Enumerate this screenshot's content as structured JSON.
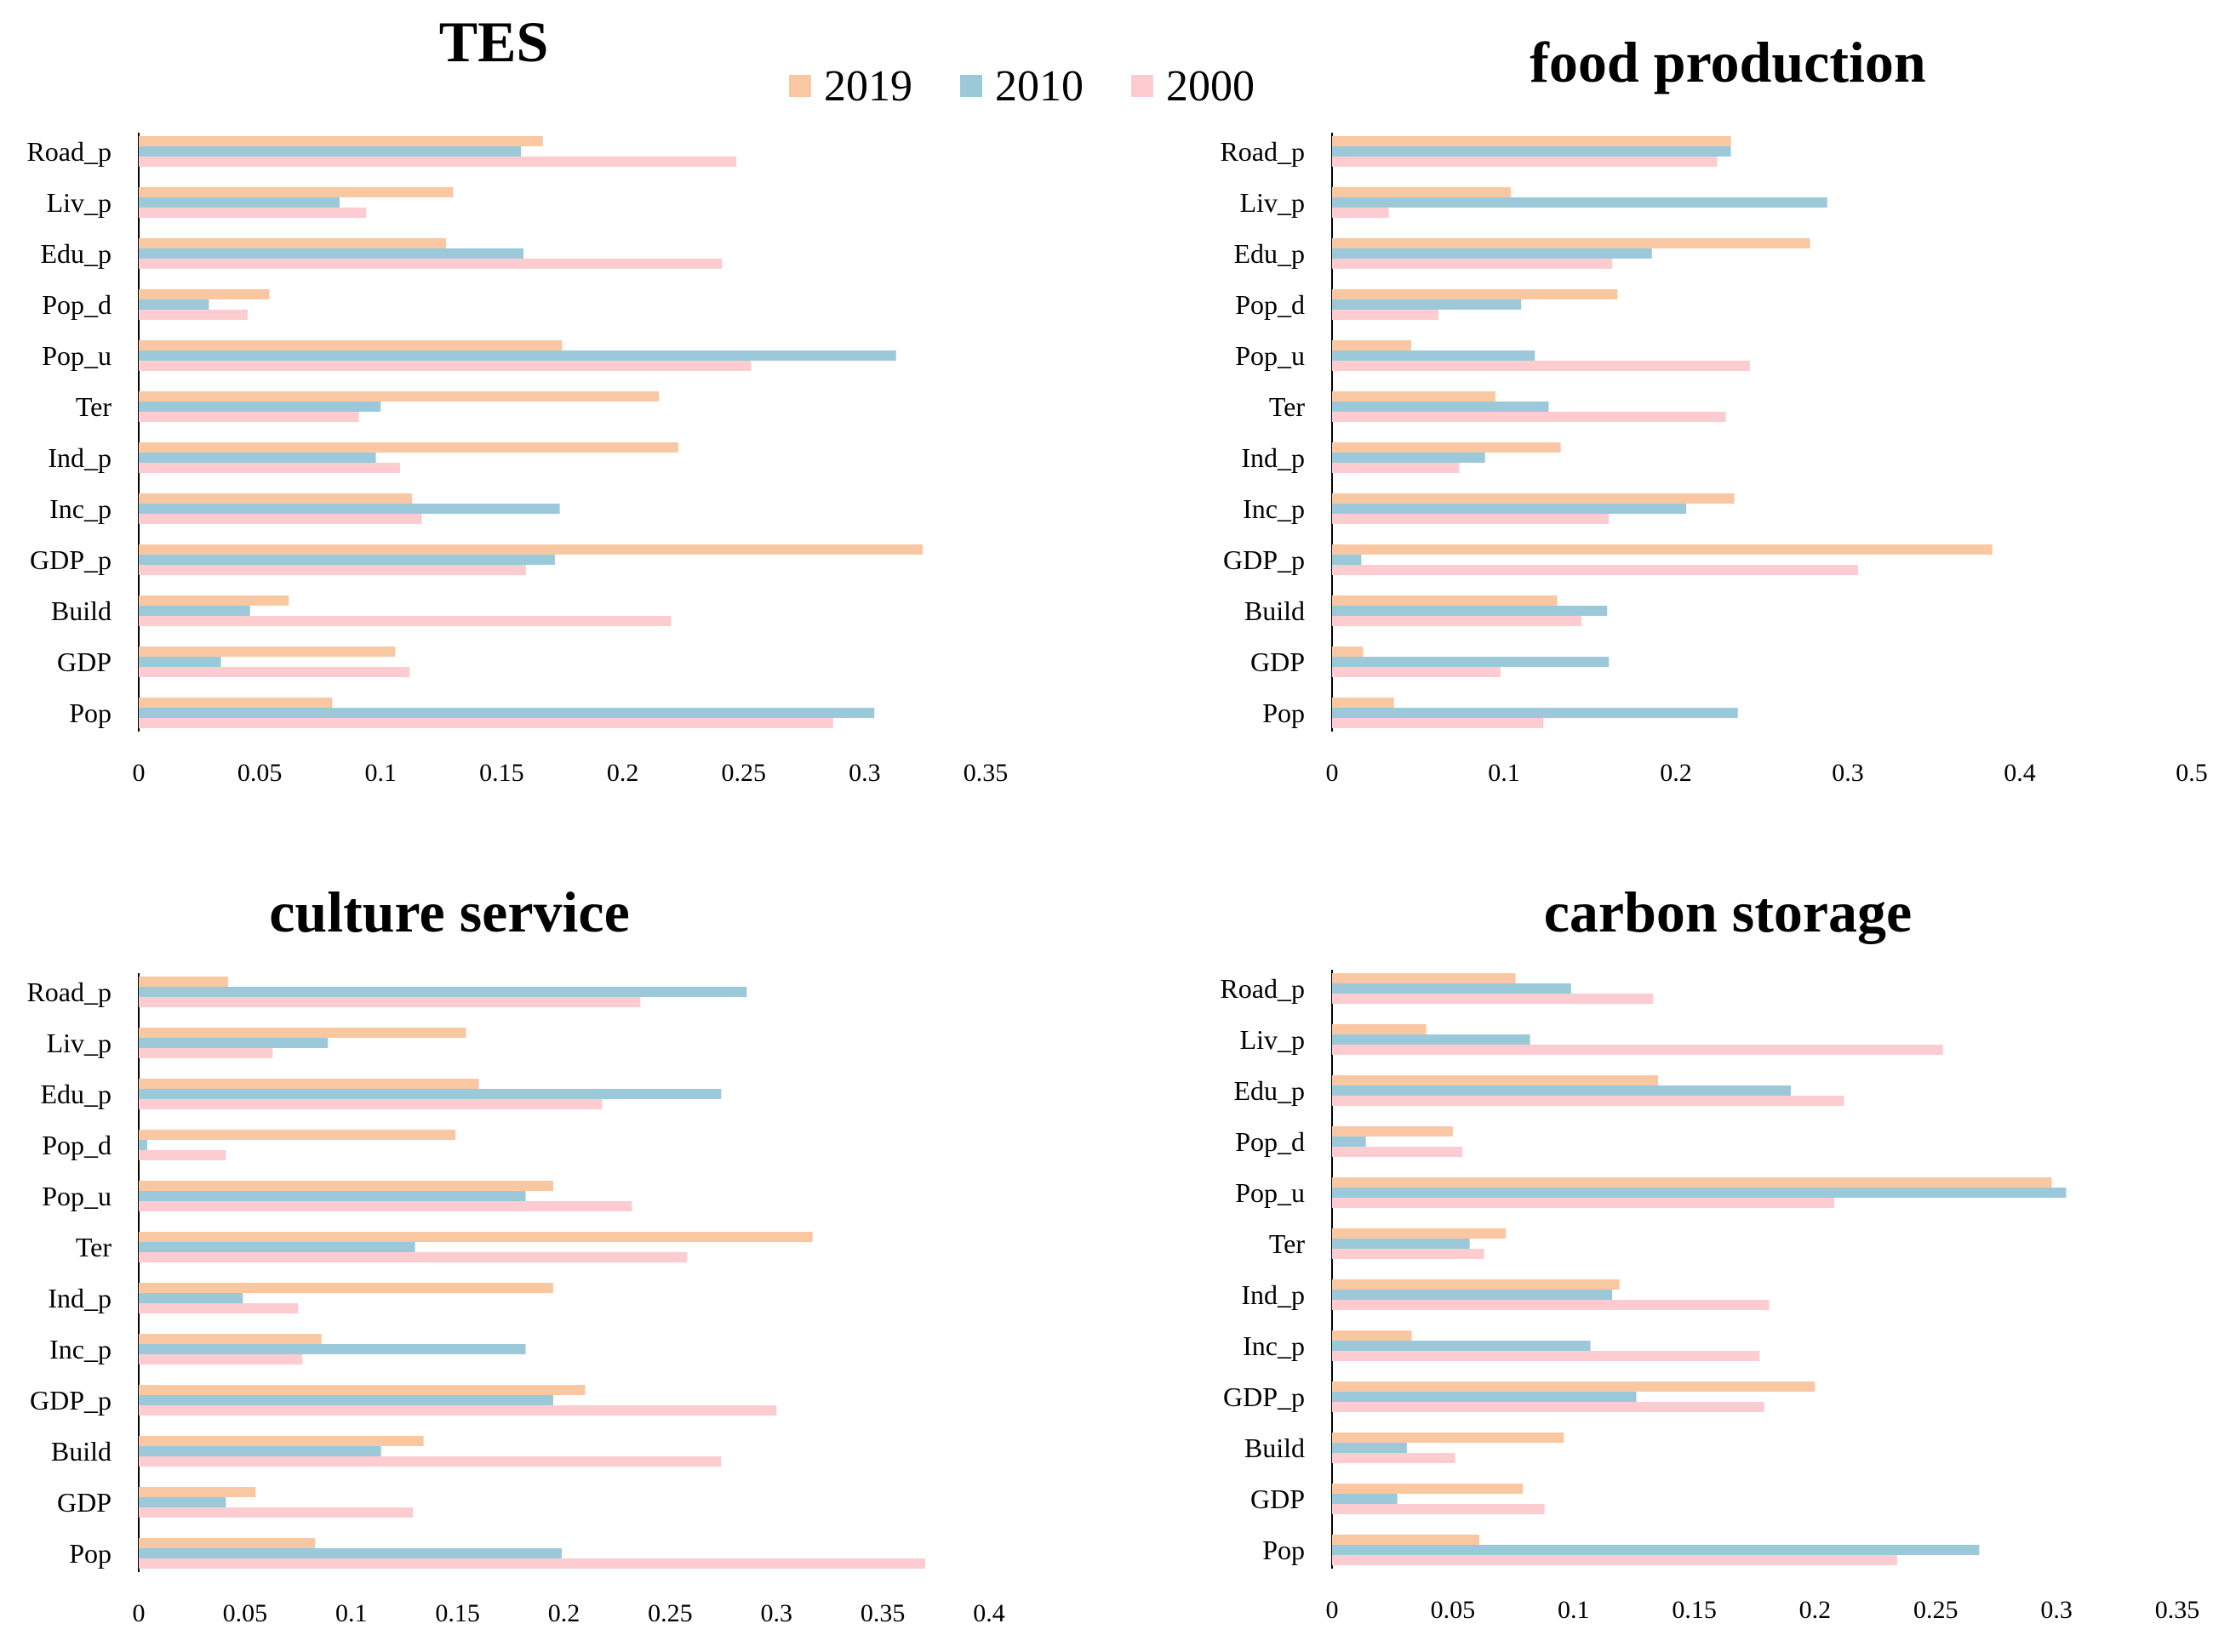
{
  "legend": [
    {
      "name": "2019",
      "color": "#F9C8A2"
    },
    {
      "name": "2010",
      "color": "#9CC9DA"
    },
    {
      "name": "2000",
      "color": "#FCCCD0"
    }
  ],
  "chart_data": [
    {
      "type": "bar",
      "orientation": "horizontal",
      "title": "TES",
      "categories": [
        "Pop",
        "GDP",
        "Build",
        "GDP_p",
        "Inc_p",
        "Ind_p",
        "Ter",
        "Pop_u",
        "Pop_d",
        "Edu_p",
        "Liv_p",
        "Road_p"
      ],
      "series": [
        {
          "name": "2019",
          "values": [
            0.08,
            0.106,
            0.062,
            0.324,
            0.113,
            0.223,
            0.215,
            0.175,
            0.054,
            0.127,
            0.13,
            0.167
          ]
        },
        {
          "name": "2010",
          "values": [
            0.304,
            0.034,
            0.046,
            0.172,
            0.174,
            0.098,
            0.1,
            0.313,
            0.029,
            0.159,
            0.083,
            0.158
          ]
        },
        {
          "name": "2000",
          "values": [
            0.287,
            0.112,
            0.22,
            0.16,
            0.117,
            0.108,
            0.091,
            0.253,
            0.045,
            0.241,
            0.094,
            0.247
          ]
        }
      ],
      "xlim": [
        0,
        0.35
      ],
      "xticks": [
        "0",
        "0.05",
        "0.1",
        "0.15",
        "0.2",
        "0.25",
        "0.3",
        "0.35"
      ],
      "xlabel": "",
      "ylabel": ""
    },
    {
      "type": "bar",
      "orientation": "horizontal",
      "title": "food production",
      "categories": [
        "Pop",
        "GDP",
        "Build",
        "GDP_p",
        "Inc_p",
        "Ind_p",
        "Ter",
        "Pop_u",
        "Pop_d",
        "Edu_p",
        "Liv_p",
        "Road_p"
      ],
      "series": [
        {
          "name": "2019",
          "values": [
            0.036,
            0.018,
            0.131,
            0.384,
            0.234,
            0.133,
            0.095,
            0.046,
            0.166,
            0.278,
            0.104,
            0.232
          ]
        },
        {
          "name": "2010",
          "values": [
            0.236,
            0.161,
            0.16,
            0.017,
            0.206,
            0.089,
            0.126,
            0.118,
            0.11,
            0.186,
            0.288,
            0.232
          ]
        },
        {
          "name": "2000",
          "values": [
            0.123,
            0.098,
            0.145,
            0.306,
            0.161,
            0.074,
            0.229,
            0.243,
            0.062,
            0.163,
            0.033,
            0.224
          ]
        }
      ],
      "xlim": [
        0,
        0.5
      ],
      "xticks": [
        "0",
        "0.1",
        "0.2",
        "0.3",
        "0.4",
        "0.5"
      ],
      "xlabel": "",
      "ylabel": ""
    },
    {
      "type": "bar",
      "orientation": "horizontal",
      "title": "culture service",
      "categories": [
        "Pop",
        "GDP",
        "Build",
        "GDP_p",
        "Inc_p",
        "Ind_p",
        "Ter",
        "Pop_u",
        "Pop_d",
        "Edu_p",
        "Liv_p",
        "Road_p"
      ],
      "series": [
        {
          "name": "2019",
          "values": [
            0.083,
            0.055,
            0.134,
            0.21,
            0.086,
            0.195,
            0.317,
            0.195,
            0.149,
            0.16,
            0.154,
            0.042
          ]
        },
        {
          "name": "2010",
          "values": [
            0.199,
            0.041,
            0.114,
            0.195,
            0.182,
            0.049,
            0.13,
            0.182,
            0.004,
            0.274,
            0.089,
            0.286
          ]
        },
        {
          "name": "2000",
          "values": [
            0.37,
            0.129,
            0.274,
            0.3,
            0.077,
            0.075,
            0.258,
            0.232,
            0.041,
            0.218,
            0.063,
            0.236
          ]
        }
      ],
      "xlim": [
        0,
        0.4
      ],
      "xticks": [
        "0",
        "0.05",
        "0.1",
        "0.15",
        "0.2",
        "0.25",
        "0.3",
        "0.35",
        "0.4"
      ],
      "xlabel": "",
      "ylabel": ""
    },
    {
      "type": "bar",
      "orientation": "horizontal",
      "title": "carbon storage",
      "categories": [
        "Pop",
        "GDP",
        "Build",
        "GDP_p",
        "Inc_p",
        "Ind_p",
        "Ter",
        "Pop_u",
        "Pop_d",
        "Edu_p",
        "Liv_p",
        "Road_p"
      ],
      "series": [
        {
          "name": "2019",
          "values": [
            0.061,
            0.079,
            0.096,
            0.2,
            0.033,
            0.119,
            0.072,
            0.298,
            0.05,
            0.135,
            0.039,
            0.076
          ]
        },
        {
          "name": "2010",
          "values": [
            0.268,
            0.027,
            0.031,
            0.126,
            0.107,
            0.116,
            0.057,
            0.304,
            0.014,
            0.19,
            0.082,
            0.099
          ]
        },
        {
          "name": "2000",
          "values": [
            0.234,
            0.088,
            0.051,
            0.179,
            0.177,
            0.181,
            0.063,
            0.208,
            0.054,
            0.212,
            0.253,
            0.133
          ]
        }
      ],
      "xlim": [
        0,
        0.35
      ],
      "xticks": [
        "0",
        "0.05",
        "0.1",
        "0.15",
        "0.2",
        "0.25",
        "0.3",
        "0.35"
      ],
      "xlabel": "",
      "ylabel": ""
    }
  ]
}
